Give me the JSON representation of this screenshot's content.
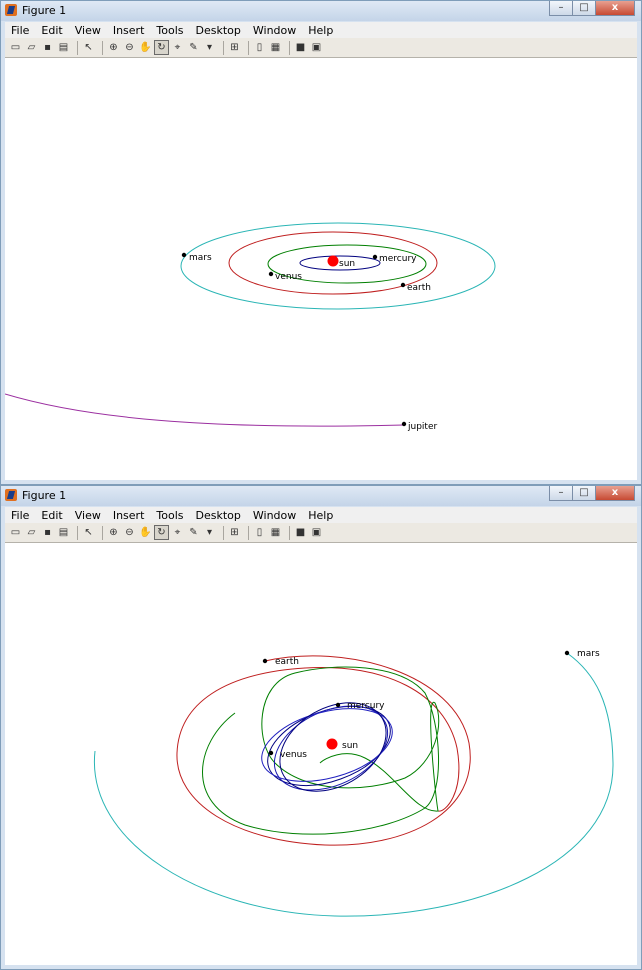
{
  "windows": [
    {
      "title": "Figure 1",
      "menu": [
        "File",
        "Edit",
        "View",
        "Insert",
        "Tools",
        "Desktop",
        "Window",
        "Help"
      ],
      "labels": {
        "sun": "sun",
        "mercury": "mercury",
        "venus": "venus",
        "earth": "earth",
        "mars": "mars",
        "jupiter": "jupiter"
      }
    },
    {
      "title": "Figure 1",
      "menu": [
        "File",
        "Edit",
        "View",
        "Insert",
        "Tools",
        "Desktop",
        "Window",
        "Help"
      ],
      "labels": {
        "sun": "sun",
        "mercury": "mercury",
        "venus": "venus",
        "earth": "earth",
        "mars": "mars"
      }
    }
  ],
  "window_controls": {
    "minimize": "–",
    "maximize": "□",
    "close": "x"
  },
  "toolbar_icons": [
    "new-figure-icon",
    "open-file-icon",
    "save-icon",
    "print-icon",
    "edit-plot-icon",
    "zoom-in-icon",
    "zoom-out-icon",
    "pan-icon",
    "rotate-3d-icon",
    "data-cursor-icon",
    "brush-icon",
    "link-plot-icon",
    "colorbar-icon",
    "legend-icon",
    "hide-plot-tools-icon",
    "show-plot-tools-icon"
  ],
  "colors": {
    "mercury": "#00007f",
    "venus": "#007f00",
    "earth": "#bf1f1f",
    "mars": "#2ab5b5",
    "jupiter": "#9b2fa0",
    "sun": "#ff0000"
  }
}
